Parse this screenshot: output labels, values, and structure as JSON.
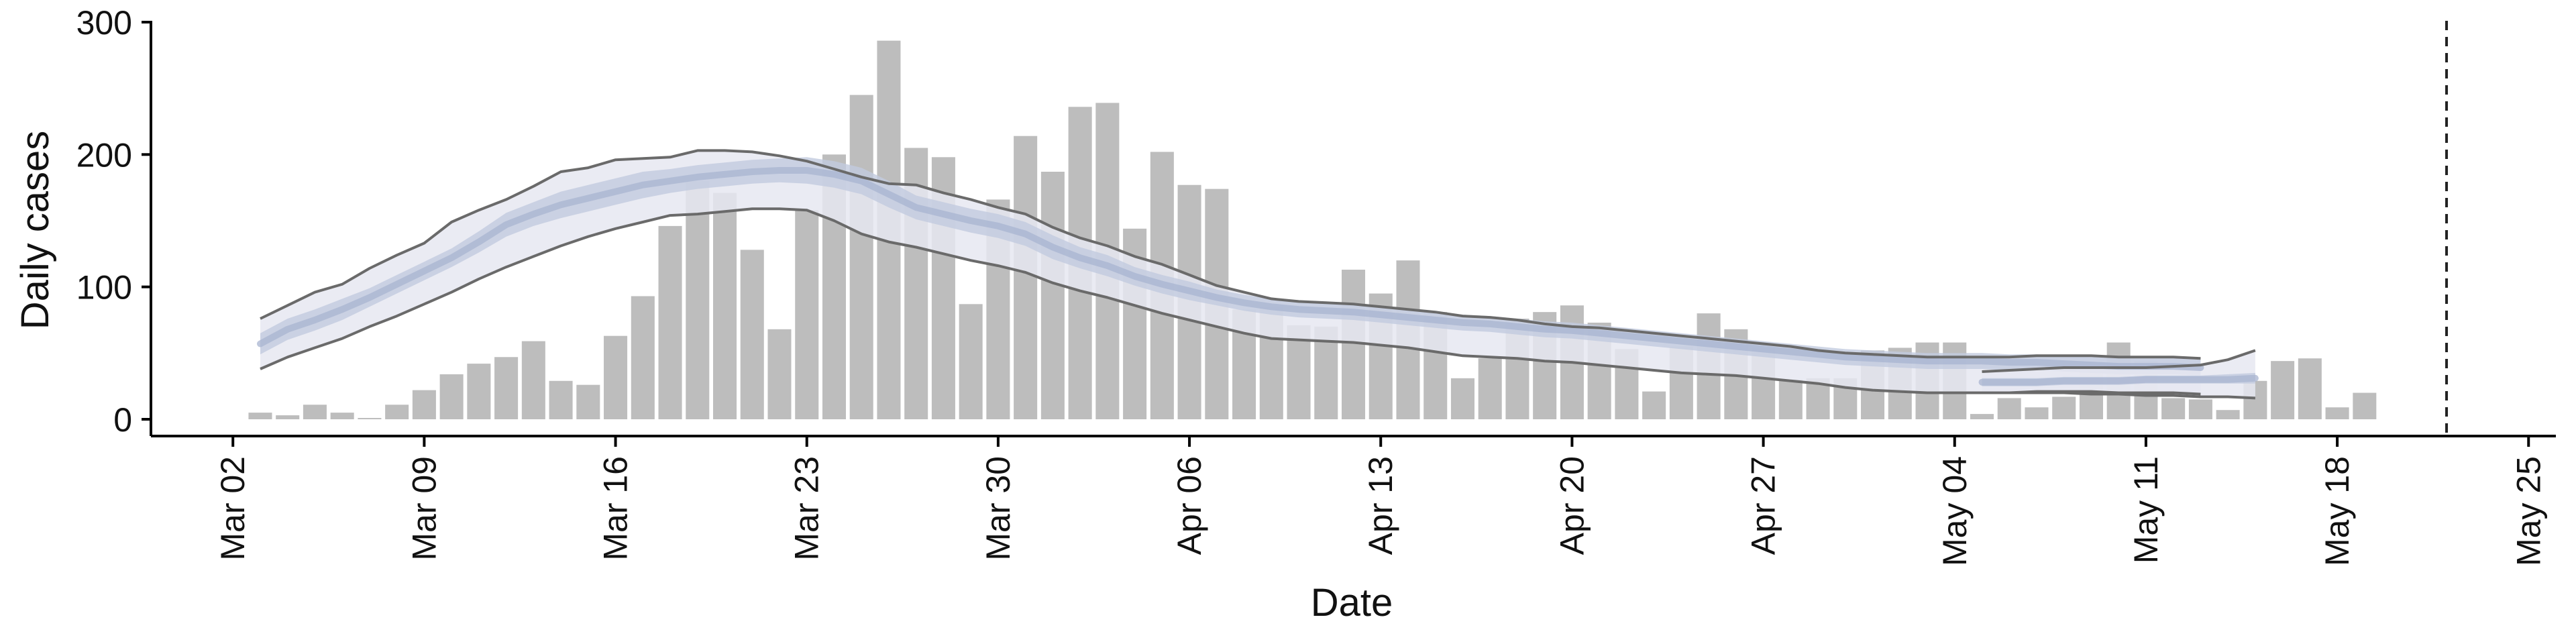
{
  "chart_data": {
    "type": "bar",
    "xlabel": "Date",
    "ylabel": "Daily cases",
    "ylim": [
      0,
      300
    ],
    "xlim": [
      "2020-02-28",
      "2020-05-26"
    ],
    "yticks": [
      0,
      100,
      200,
      300
    ],
    "xticks": [
      {
        "date": "2020-03-02",
        "label": "Mar 02"
      },
      {
        "date": "2020-03-09",
        "label": "Mar 09"
      },
      {
        "date": "2020-03-16",
        "label": "Mar 16"
      },
      {
        "date": "2020-03-23",
        "label": "Mar 23"
      },
      {
        "date": "2020-03-30",
        "label": "Mar 30"
      },
      {
        "date": "2020-04-06",
        "label": "Apr 06"
      },
      {
        "date": "2020-04-13",
        "label": "Apr 13"
      },
      {
        "date": "2020-04-20",
        "label": "Apr 20"
      },
      {
        "date": "2020-04-27",
        "label": "Apr 27"
      },
      {
        "date": "2020-05-04",
        "label": "May 04"
      },
      {
        "date": "2020-05-11",
        "label": "May 11"
      },
      {
        "date": "2020-05-18",
        "label": "May 18"
      },
      {
        "date": "2020-05-25",
        "label": "May 25"
      }
    ],
    "bars": {
      "start_date": "2020-03-03",
      "values": [
        5,
        3,
        11,
        5,
        1,
        11,
        22,
        34,
        42,
        47,
        59,
        29,
        26,
        63,
        93,
        146,
        180,
        171,
        128,
        68,
        158,
        200,
        245,
        286,
        205,
        198,
        87,
        166,
        214,
        187,
        236,
        239,
        144,
        202,
        177,
        174,
        83,
        85,
        71,
        70,
        113,
        95,
        120,
        81,
        31,
        46,
        76,
        81,
        86,
        73,
        53,
        21,
        55,
        80,
        68,
        54,
        30,
        31,
        31,
        52,
        54,
        58,
        58,
        4,
        16,
        9,
        17,
        36,
        58,
        44,
        16,
        15,
        7,
        29,
        44,
        46,
        9,
        20
      ]
    },
    "series": [
      {
        "start_date": "2020-03-03",
        "median": [
          57,
          68,
          75,
          83,
          92,
          102,
          112,
          122,
          134,
          147,
          155,
          162,
          167,
          172,
          177,
          180,
          183,
          185,
          187,
          188,
          188,
          185,
          180,
          170,
          160,
          155,
          150,
          146,
          140,
          130,
          122,
          116,
          108,
          102,
          97,
          92,
          88,
          85,
          83,
          82,
          81,
          79,
          77,
          75,
          73,
          72,
          70,
          68,
          67,
          65,
          63,
          61,
          59,
          57,
          55,
          53,
          51,
          49,
          47,
          46,
          45,
          44,
          44,
          44,
          43,
          43,
          42,
          41,
          40,
          40,
          40,
          39
        ],
        "inner_low": [
          49,
          60,
          67,
          75,
          85,
          95,
          105,
          115,
          126,
          138,
          146,
          152,
          157,
          162,
          167,
          171,
          174,
          176,
          178,
          179,
          178,
          175,
          170,
          160,
          151,
          146,
          141,
          137,
          131,
          121,
          114,
          108,
          101,
          95,
          90,
          86,
          82,
          79,
          77,
          76,
          75,
          73,
          71,
          69,
          67,
          66,
          64,
          62,
          61,
          59,
          57,
          55,
          53,
          51,
          49,
          47,
          45,
          43,
          41,
          40,
          39,
          38,
          38,
          38,
          37,
          37,
          36,
          35,
          34,
          34,
          34,
          33
        ],
        "inner_high": [
          65,
          76,
          83,
          91,
          99,
          109,
          119,
          129,
          142,
          156,
          164,
          172,
          177,
          182,
          187,
          189,
          192,
          194,
          196,
          197,
          198,
          195,
          190,
          180,
          169,
          164,
          159,
          155,
          149,
          139,
          130,
          124,
          115,
          109,
          104,
          98,
          94,
          91,
          89,
          88,
          87,
          85,
          83,
          81,
          79,
          78,
          76,
          74,
          73,
          71,
          69,
          67,
          65,
          63,
          61,
          59,
          57,
          55,
          53,
          52,
          51,
          50,
          50,
          50,
          49,
          49,
          48,
          47,
          46,
          46,
          46,
          45
        ],
        "lower": [
          38,
          47,
          54,
          61,
          70,
          78,
          87,
          96,
          106,
          115,
          123,
          131,
          138,
          144,
          149,
          154,
          155,
          157,
          159,
          159,
          158,
          150,
          140,
          134,
          130,
          125,
          120,
          116,
          111,
          103,
          97,
          92,
          86,
          80,
          75,
          70,
          65,
          61,
          60,
          59,
          58,
          56,
          54,
          51,
          48,
          47,
          46,
          44,
          43,
          41,
          39,
          37,
          35,
          34,
          33,
          31,
          29,
          27,
          24,
          22,
          21,
          20,
          20,
          20,
          20,
          21,
          21,
          21,
          20,
          20,
          20,
          19
        ],
        "upper": [
          76,
          86,
          96,
          102,
          114,
          124,
          133,
          149,
          158,
          166,
          176,
          187,
          190,
          196,
          197,
          198,
          203,
          203,
          202,
          199,
          195,
          189,
          183,
          178,
          177,
          171,
          166,
          160,
          155,
          145,
          137,
          131,
          123,
          117,
          109,
          101,
          96,
          91,
          89,
          88,
          87,
          85,
          83,
          81,
          78,
          77,
          75,
          72,
          70,
          69,
          67,
          65,
          63,
          61,
          59,
          57,
          55,
          52,
          50,
          49,
          48,
          47,
          47,
          47,
          47,
          48,
          48,
          48,
          47,
          47,
          47,
          46
        ]
      },
      {
        "start_date": "2020-05-05",
        "median": [
          28,
          28,
          28,
          29,
          29,
          29,
          30,
          30,
          30,
          30,
          31
        ],
        "inner_low": [
          25,
          25,
          25,
          26,
          26,
          26,
          27,
          27,
          27,
          27,
          27
        ],
        "inner_high": [
          31,
          31,
          31,
          32,
          32,
          32,
          33,
          33,
          33,
          34,
          35
        ],
        "lower": [
          20,
          20,
          20,
          20,
          19,
          19,
          18,
          18,
          17,
          17,
          16
        ],
        "upper": [
          36,
          37,
          38,
          39,
          39,
          39,
          39,
          40,
          41,
          45,
          52
        ]
      }
    ],
    "vline": {
      "date": "2020-05-22",
      "style": "dashed"
    },
    "colors": {
      "bar": "#bdbdbd",
      "outer_band": "#e6e8f1",
      "inner_band": "#c2cbde",
      "median_line": "#a8b4d0",
      "bound_line": "#6a6a6a",
      "vline": "#222222",
      "axis": "#000000"
    },
    "legend": "none",
    "grid": false
  }
}
